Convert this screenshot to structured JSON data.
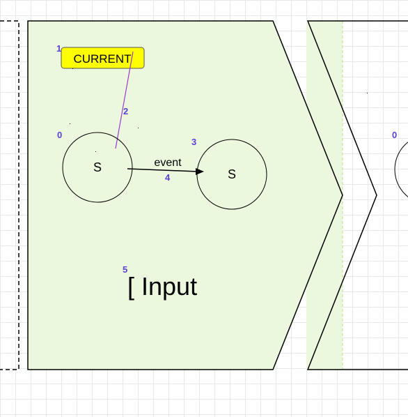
{
  "diagram": {
    "current_label": "CURRENT",
    "input_label": "[ Input",
    "state_left_label": "S",
    "state_right_label": "S",
    "transition_label": "event",
    "index_labels": {
      "current_tag": "1",
      "pointer_line": "2",
      "state_left": "0",
      "state_right": "3",
      "transition": "4",
      "input_label": "5",
      "next_state": "0"
    },
    "colors": {
      "panel_fill": "#ebf8dd",
      "current_fill": "#ffff00",
      "index_text": "#5b3fd6",
      "pointer_line": "#9a3ad0"
    }
  }
}
